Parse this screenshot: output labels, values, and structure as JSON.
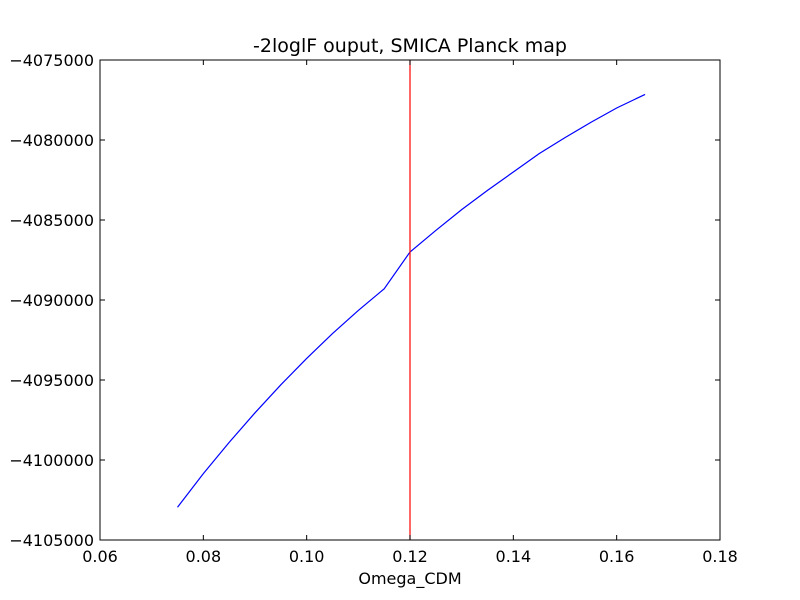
{
  "chart_data": {
    "type": "line",
    "title": "-2loglF ouput, SMICA Planck map",
    "xlabel": "Omega_CDM",
    "ylabel": "",
    "xlim": [
      0.06,
      0.18
    ],
    "ylim": [
      -4105000,
      -4075000
    ],
    "x_ticks": [
      0.06,
      0.08,
      0.1,
      0.12,
      0.14,
      0.16,
      0.18
    ],
    "x_tick_labels": [
      "0.06",
      "0.08",
      "0.10",
      "0.12",
      "0.14",
      "0.16",
      "0.18"
    ],
    "y_ticks": [
      -4105000,
      -4100000,
      -4095000,
      -4090000,
      -4085000,
      -4080000,
      -4075000
    ],
    "y_tick_labels": [
      "−4105000",
      "−4100000",
      "−4095000",
      "−4090000",
      "−4085000",
      "−4080000",
      "−4075000"
    ],
    "grid": false,
    "series": [
      {
        "color": "#0000ff",
        "x": [
          0.075,
          0.08,
          0.085,
          0.09,
          0.095,
          0.1,
          0.105,
          0.11,
          0.115,
          0.12,
          0.125,
          0.13,
          0.135,
          0.14,
          0.145,
          0.15,
          0.155,
          0.16,
          0.1655
        ],
        "y": [
          -4102950,
          -4100850,
          -4098900,
          -4097050,
          -4095300,
          -4093650,
          -4092100,
          -4090650,
          -4089300,
          -4087000,
          -4085650,
          -4084350,
          -4083150,
          -4082000,
          -4080850,
          -4079850,
          -4078900,
          -4078000,
          -4077150
        ]
      }
    ],
    "vertical_lines": [
      {
        "x": 0.12,
        "color": "#ff0000"
      }
    ]
  }
}
